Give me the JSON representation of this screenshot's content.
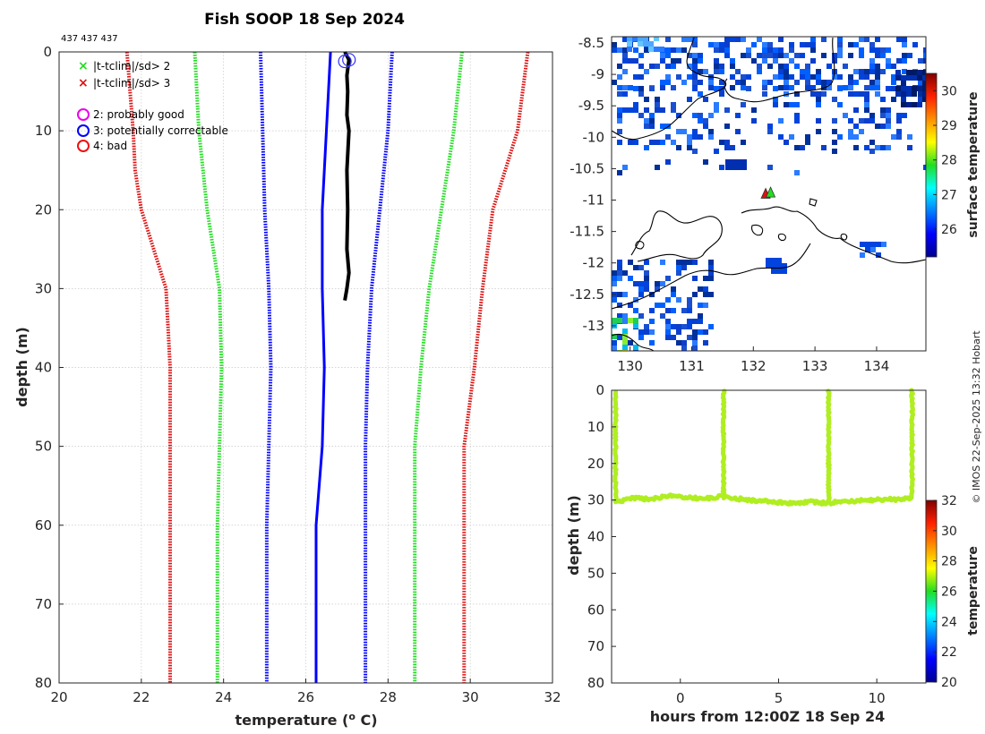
{
  "title": "Fish SOOP 18 Sep 2024",
  "ids_note": "437 437 437",
  "credit": "© IMOS 22-Sep-2025 13:32 Hobart",
  "colors": {
    "profile": "#000000",
    "blue": "#0000ff",
    "green": "#22dd22",
    "red": "#dd1111",
    "magenta": "#ee00ee",
    "lime": "#b0ee22"
  },
  "legend": {
    "x_green": "|t-tclim|/sd> 2",
    "x_red": "|t-tclim|/sd> 3",
    "flag2": "2: probably good",
    "flag3": "3: potentially correctable",
    "flag4": "4: bad"
  },
  "chart_data": [
    {
      "type": "line",
      "name": "temperature profile",
      "xlabel": "temperature (°C)",
      "xlabel_main": "temperature (",
      "xlabel_sup": "o",
      "xlabel_end": " C)",
      "ylabel": "depth (m)",
      "xlim": [
        20,
        32
      ],
      "ylim": [
        80,
        0
      ],
      "xticks": [
        20,
        22,
        24,
        26,
        28,
        30,
        32
      ],
      "yticks": [
        0,
        10,
        20,
        30,
        40,
        50,
        60,
        70,
        80
      ],
      "grid": true,
      "series": [
        {
          "name": "clim_mean",
          "style": "solid",
          "color": "blue",
          "depth": [
            0,
            10,
            20,
            30,
            40,
            50,
            60,
            70,
            80
          ],
          "temp": [
            26.6,
            26.5,
            26.4,
            26.4,
            26.45,
            26.4,
            26.25,
            26.25,
            26.25
          ]
        },
        {
          "name": "clim_minus_1sd",
          "style": "dotted",
          "color": "blue",
          "depth": [
            0,
            10,
            20,
            30,
            40,
            50,
            60,
            70,
            80
          ],
          "temp": [
            24.9,
            24.95,
            25.0,
            25.1,
            25.15,
            25.1,
            25.05,
            25.05,
            25.05
          ]
        },
        {
          "name": "clim_plus_1sd",
          "style": "dotted",
          "color": "blue",
          "depth": [
            0,
            10,
            20,
            30,
            40,
            50,
            60,
            70,
            80
          ],
          "temp": [
            28.1,
            28.0,
            27.8,
            27.6,
            27.5,
            27.45,
            27.45,
            27.45,
            27.45
          ]
        },
        {
          "name": "clim_minus_2sd",
          "style": "dotted",
          "color": "green",
          "depth": [
            0,
            10,
            20,
            30,
            40,
            50,
            60,
            70,
            80
          ],
          "temp": [
            23.3,
            23.4,
            23.6,
            23.9,
            23.95,
            23.9,
            23.85,
            23.85,
            23.85
          ]
        },
        {
          "name": "clim_plus_2sd",
          "style": "dotted",
          "color": "green",
          "depth": [
            0,
            10,
            20,
            30,
            40,
            50,
            60,
            70,
            80
          ],
          "temp": [
            29.8,
            29.6,
            29.3,
            29.0,
            28.8,
            28.65,
            28.65,
            28.65,
            28.65
          ]
        },
        {
          "name": "clim_minus_3sd",
          "style": "dotted",
          "color": "red",
          "depth": [
            0,
            10,
            15,
            20,
            25,
            30,
            40,
            50,
            60,
            70,
            80
          ],
          "temp": [
            21.65,
            21.8,
            21.85,
            22.0,
            22.3,
            22.6,
            22.7,
            22.7,
            22.7,
            22.7,
            22.7
          ]
        },
        {
          "name": "clim_plus_3sd",
          "style": "dotted",
          "color": "red",
          "depth": [
            0,
            10,
            20,
            30,
            40,
            50,
            60,
            70,
            80
          ],
          "temp": [
            31.4,
            31.15,
            30.55,
            30.3,
            30.1,
            29.85,
            29.85,
            29.85,
            29.85
          ]
        },
        {
          "name": "observed",
          "style": "solid",
          "color": "profile",
          "depth": [
            0,
            1,
            3,
            5,
            8,
            10,
            15,
            20,
            25,
            28,
            30,
            31.5
          ],
          "temp": [
            26.95,
            27.05,
            27.0,
            27.02,
            27.0,
            27.05,
            27.0,
            27.02,
            27.0,
            27.05,
            27.0,
            26.95
          ]
        }
      ],
      "flags": [
        {
          "flag": 3,
          "depth": 1.0,
          "temp": 27.05
        },
        {
          "flag": 3,
          "depth": 1.2,
          "temp": 26.95
        }
      ]
    },
    {
      "type": "heatmap",
      "name": "surface temperature map",
      "xlim": [
        129.7,
        134.8
      ],
      "ylim": [
        -13.4,
        -8.4
      ],
      "xticks": [
        130,
        131,
        132,
        133,
        134
      ],
      "yticks": [
        -8.5,
        -9,
        -9.5,
        -10,
        -10.5,
        -11,
        -11.5,
        -12,
        -12.5,
        -13
      ],
      "colorbar": {
        "label": "surface temperature",
        "min": 25.2,
        "max": 30.5,
        "ticks": [
          26,
          27,
          28,
          29,
          30
        ]
      },
      "markers": [
        {
          "lon": 132.2,
          "lat": -10.9,
          "color": "red"
        },
        {
          "lon": 132.28,
          "lat": -10.88,
          "color": "green"
        }
      ]
    },
    {
      "type": "scatter",
      "name": "depth vs time",
      "xlabel": "hours from 12:00Z 18 Sep 24",
      "ylabel": "depth (m)",
      "xlim": [
        -3.5,
        12.5
      ],
      "ylim": [
        80,
        0
      ],
      "xticks": [
        0,
        5,
        10
      ],
      "yticks": [
        0,
        10,
        20,
        30,
        40,
        50,
        60,
        70,
        80
      ],
      "colorbar": {
        "label": "temperature",
        "min": 20,
        "max": 32,
        "ticks": [
          20,
          22,
          24,
          26,
          28,
          30,
          32
        ]
      },
      "point_temperature": 27.0,
      "tow_segments": [
        {
          "t0": -3.3,
          "t1": 2.1,
          "depth": [
            30.5,
            29.5,
            29.8,
            28.8,
            29.2,
            29.6,
            29.0
          ]
        },
        {
          "t0": 2.3,
          "t1": 7.5,
          "depth": [
            29.2,
            29.8,
            30.2,
            30.6,
            31.0,
            30.5,
            30.9
          ]
        },
        {
          "t0": 7.6,
          "t1": 11.8,
          "depth": [
            30.8,
            30.4,
            30.2,
            30.0,
            29.8,
            29.9,
            29.3
          ]
        }
      ],
      "casts": [
        {
          "t": -3.3,
          "depth_top": 0.5,
          "depth_bottom": 30.5
        },
        {
          "t": 2.2,
          "depth_top": 0.2,
          "depth_bottom": 29.5
        },
        {
          "t": 7.55,
          "depth_top": 0.2,
          "depth_bottom": 30.6
        },
        {
          "t": 11.8,
          "depth_top": 0.0,
          "depth_bottom": 29.5
        }
      ]
    }
  ]
}
